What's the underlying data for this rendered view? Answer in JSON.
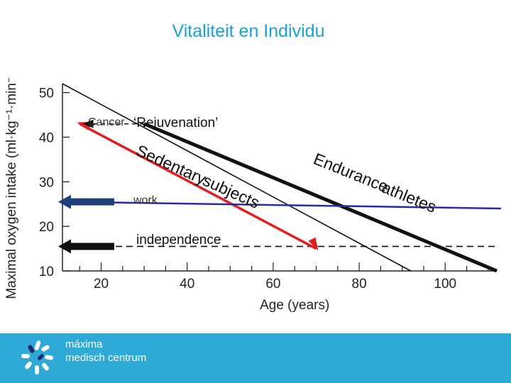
{
  "slide": {
    "title": "Vitaliteit en Individu"
  },
  "chart_data": {
    "type": "line",
    "xlabel": "Age (years)",
    "ylabel": "Maximal oxygen intake (ml·kg⁻¹·min⁻¹)",
    "xlim": [
      11,
      112
    ],
    "ylim": [
      10,
      52
    ],
    "x_ticks": [
      20,
      40,
      60,
      80,
      100
    ],
    "y_ticks": [
      10,
      20,
      30,
      40,
      50
    ],
    "series": [
      {
        "name": "Sedentary subjects",
        "color": "#111111",
        "width": 1.6,
        "points": [
          [
            11,
            52
          ],
          [
            92,
            10
          ]
        ]
      },
      {
        "name": "Endurance athletes",
        "color": "#111111",
        "width": 5,
        "points": [
          [
            30,
            43
          ],
          [
            112,
            10
          ]
        ]
      },
      {
        "name": "",
        "color": "#e02020",
        "width": 3.5,
        "points": [
          [
            15,
            43
          ],
          [
            70,
            15
          ]
        ]
      },
      {
        "name": "",
        "color": "#2b2ba8",
        "width": 2.5,
        "points": [
          [
            13,
            25.5
          ],
          [
            113,
            24
          ]
        ]
      }
    ],
    "thresholds": [
      {
        "label": "independence",
        "y": 15.5,
        "style": "dashed",
        "color": "#111111"
      }
    ],
    "annotations": [
      {
        "text": "Sedentary subjects",
        "color": "#111111"
      },
      {
        "text": "Endurance athletes",
        "color": "#111111"
      },
      {
        "text": "‘Rejuvenation’",
        "color": "#111111"
      },
      {
        "text": "independence",
        "color": "#111111"
      },
      {
        "text": "Cancer",
        "color": "#333333"
      },
      {
        "text": "work",
        "color": "#333333"
      }
    ],
    "rejuvenation_arrow": {
      "from_x": 30,
      "to_x": 15,
      "y": 43
    },
    "level_arrows": [
      {
        "y": 25.5,
        "color": "#1f3f7a"
      },
      {
        "y": 15.5,
        "color": "#111111"
      }
    ],
    "grid": false
  },
  "footer": {
    "line1": "máxima",
    "line2": "medisch centrum",
    "bg_color": "#2fa9d6"
  }
}
